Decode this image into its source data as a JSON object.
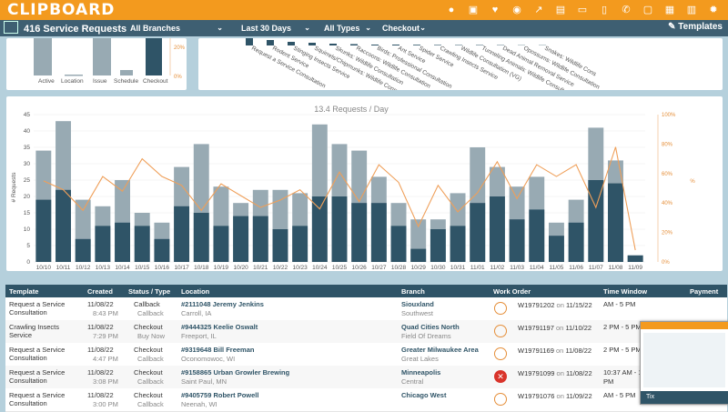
{
  "app": {
    "logo": "CLIPBOARD",
    "templates_label": "Templates"
  },
  "filters": {
    "count": "416 Service Requests",
    "branch": "All Branches",
    "range": "Last 30 Days",
    "types": "All Types",
    "stage": "Checkout"
  },
  "top_panel_left": {
    "categories": [
      "Active",
      "Location",
      "Issue",
      "Schedule",
      "Checkout"
    ],
    "axis_right": [
      "20%",
      "0%"
    ]
  },
  "top_panel_right": {
    "categories": [
      "Request a Service Consultation",
      "Rodent Service",
      "Stinging Insects Service",
      "Squirrels/Chipmunks: Wildlife Consultation (PL)",
      "Skunks: Wildlife Consultation",
      "Raccoons: Wildlife Consultation",
      "Birds: Professional Consultation",
      "Ant Service",
      "Spider Service",
      "Crawling Insects Service",
      "Wildlife Consultation (VG)",
      "Tunneling Animals: Wildlife Consultation",
      "Dead Animal Removal Service",
      "Opossums: Wildlife Consultation",
      "Snakes: Wildlife Cons"
    ]
  },
  "chart_data": {
    "type": "bar",
    "title": "13.4 Requests / Day",
    "ylabel": "# Requests",
    "y2label": "%",
    "ylim": [
      0,
      45
    ],
    "y_ticks": [
      0,
      5,
      10,
      15,
      20,
      25,
      30,
      35,
      40,
      45
    ],
    "y2_ticks": [
      "0%",
      "20%",
      "40%",
      "60%",
      "80%",
      "100%"
    ],
    "categories": [
      "10/10",
      "10/11",
      "10/12",
      "10/13",
      "10/14",
      "10/15",
      "10/16",
      "10/17",
      "10/18",
      "10/19",
      "10/20",
      "10/21",
      "10/22",
      "10/23",
      "10/24",
      "10/25",
      "10/26",
      "10/27",
      "10/28",
      "10/29",
      "10/30",
      "10/31",
      "11/01",
      "11/02",
      "11/03",
      "11/04",
      "11/05",
      "11/06",
      "11/07",
      "11/08",
      "11/09"
    ],
    "series": [
      {
        "values": [
          34,
          43,
          19,
          17,
          25,
          15,
          12,
          29,
          36,
          23,
          18,
          22,
          22,
          21,
          42,
          36,
          34,
          26,
          18,
          13,
          13,
          21,
          35,
          29,
          23,
          26,
          12,
          19,
          41,
          31,
          2
        ]
      },
      {
        "values": [
          19,
          22,
          7,
          11,
          12,
          11,
          7,
          17,
          15,
          11,
          14,
          14,
          10,
          11,
          20,
          20,
          18,
          18,
          11,
          4,
          10,
          11,
          18,
          20,
          13,
          16,
          8,
          12,
          25,
          24,
          2
        ]
      },
      {
        "values": [
          55,
          49,
          35,
          58,
          48,
          70,
          58,
          52,
          35,
          53,
          45,
          37,
          42,
          49,
          36,
          61,
          41,
          66,
          54,
          24,
          52,
          34,
          47,
          68,
          43,
          66,
          58,
          66,
          37,
          78,
          8
        ]
      }
    ],
    "colors": {
      "total": "#98aab3",
      "checkout": "#2f5467",
      "rate": "#ef9f59"
    },
    "grid": true
  },
  "table": {
    "headers": [
      "Template",
      "Created",
      "Status / Type",
      "Location",
      "Branch",
      "Work Order",
      "Time Window",
      "Payment"
    ],
    "rows": [
      {
        "template": "Request a Service Consultation",
        "date": "11/08/22",
        "time": "8:43 PM",
        "status": "Callback",
        "type": "Callback",
        "loc_name": "#2111048 Jeremy Jenkins",
        "loc_city": "Carroll, IA",
        "branch": "Siouxland",
        "branch_sub": "Southwest",
        "wo": "W19791202",
        "wo_on": "on",
        "wo_date": "11/15/22",
        "tw1": "AM - 5 PM",
        "tw2": "",
        "wo_err": false
      },
      {
        "template": "Crawling Insects Service",
        "date": "11/08/22",
        "time": "7:29 PM",
        "status": "Checkout",
        "type": "Buy Now",
        "loc_name": "#9444325 Keelie Oswalt",
        "loc_city": "Freeport, IL",
        "branch": "Quad Cities North",
        "branch_sub": "Field Of Dreams",
        "wo": "W19791197",
        "wo_on": "on",
        "wo_date": "11/10/22",
        "tw1": "2 PM - 5 PM",
        "tw2": "",
        "wo_err": false
      },
      {
        "template": "Request a Service Consultation",
        "date": "11/08/22",
        "time": "4:47 PM",
        "status": "Checkout",
        "type": "Callback",
        "loc_name": "#9319648 Bill Freeman",
        "loc_city": "Oconomowoc, WI",
        "branch": "Greater Milwaukee Area",
        "branch_sub": "Great Lakes",
        "wo": "W19791169",
        "wo_on": "on",
        "wo_date": "11/08/22",
        "tw1": "2 PM - 5 PM",
        "tw2": "",
        "wo_err": false
      },
      {
        "template": "Request a Service Consultation",
        "date": "11/08/22",
        "time": "3:08 PM",
        "status": "Checkout",
        "type": "Callback",
        "loc_name": "#9158865 Urban Growler Brewing",
        "loc_city": "Saint Paul, MN",
        "branch": "Minneapolis",
        "branch_sub": "Central",
        "wo": "W19791099",
        "wo_on": "on",
        "wo_date": "11/08/22",
        "tw1": "10:37 AM - 1:37",
        "tw2": "PM",
        "wo_err": true
      },
      {
        "template": "Request a Service Consultation",
        "date": "11/08/22",
        "time": "3:00 PM",
        "status": "Checkout",
        "type": "Callback",
        "loc_name": "#9405759 Robert Powell",
        "loc_city": "Neenah, WI",
        "branch": "Chicago West",
        "branch_sub": "",
        "wo": "W19791076",
        "wo_on": "on",
        "wo_date": "11/09/22",
        "tw1": "AM - 5 PM",
        "tw2": "",
        "wo_err": false
      }
    ]
  },
  "thumbnail": {
    "caption": "Tix"
  }
}
